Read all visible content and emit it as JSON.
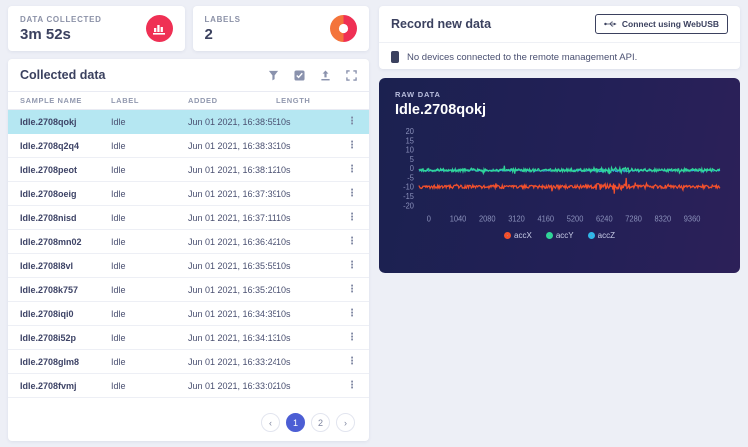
{
  "stats": [
    {
      "label": "Data collected",
      "value": "3m 52s",
      "icon": "bar-chart-icon"
    },
    {
      "label": "Labels",
      "value": "2",
      "icon": "donut-chart-icon"
    }
  ],
  "collected": {
    "title": "Collected data",
    "toolbar_icons": [
      "filter-icon",
      "select-all-icon",
      "upload-icon",
      "expand-icon"
    ],
    "columns": [
      "Sample name",
      "Label",
      "Added",
      "Length"
    ],
    "rows": [
      {
        "sample": "Idle.2708qokj",
        "label": "Idle",
        "added": "Jun 01 2021, 16:38:55",
        "length": "10s",
        "selected": true
      },
      {
        "sample": "Idle.2708q2q4",
        "label": "Idle",
        "added": "Jun 01 2021, 16:38:33",
        "length": "10s",
        "selected": false
      },
      {
        "sample": "Idle.2708peot",
        "label": "Idle",
        "added": "Jun 01 2021, 16:38:12",
        "length": "10s",
        "selected": false
      },
      {
        "sample": "Idle.2708oeig",
        "label": "Idle",
        "added": "Jun 01 2021, 16:37:39",
        "length": "10s",
        "selected": false
      },
      {
        "sample": "Idle.2708nisd",
        "label": "Idle",
        "added": "Jun 01 2021, 16:37:11",
        "length": "10s",
        "selected": false
      },
      {
        "sample": "Idle.2708mn02",
        "label": "Idle",
        "added": "Jun 01 2021, 16:36:42",
        "length": "10s",
        "selected": false
      },
      {
        "sample": "Idle.2708l8vl",
        "label": "Idle",
        "added": "Jun 01 2021, 16:35:55",
        "length": "10s",
        "selected": false
      },
      {
        "sample": "Idle.2708k757",
        "label": "Idle",
        "added": "Jun 01 2021, 16:35:20",
        "length": "10s",
        "selected": false
      },
      {
        "sample": "Idle.2708iqi0",
        "label": "Idle",
        "added": "Jun 01 2021, 16:34:35",
        "length": "10s",
        "selected": false
      },
      {
        "sample": "Idle.2708i52p",
        "label": "Idle",
        "added": "Jun 01 2021, 16:34:13",
        "length": "10s",
        "selected": false
      },
      {
        "sample": "Idle.2708glm8",
        "label": "Idle",
        "added": "Jun 01 2021, 16:33:24",
        "length": "10s",
        "selected": false
      },
      {
        "sample": "Idle.2708fvmj",
        "label": "Idle",
        "added": "Jun 01 2021, 16:33:02",
        "length": "10s",
        "selected": false
      }
    ],
    "row_menu_icon": "kebab-menu-icon",
    "pagination": {
      "prev": "‹",
      "next": "›",
      "pages": [
        "1",
        "2"
      ],
      "active": "1"
    }
  },
  "record": {
    "title": "Record new data",
    "connect_button": "Connect using WebUSB",
    "connect_icon": "usb-icon",
    "no_devices_icon": "device-phone-icon",
    "no_devices_message": "No devices connected to the remote management API."
  },
  "raw": {
    "label": "Raw data",
    "title": "Idle.2708qokj"
  },
  "chart_data": {
    "type": "line",
    "title": "Idle.2708qokj",
    "xlabel": "",
    "ylabel": "",
    "x_range": [
      0,
      10000
    ],
    "y_range": [
      -22,
      22
    ],
    "x_ticks": [
      0,
      1040,
      2080,
      3120,
      4160,
      5200,
      6240,
      7280,
      8320,
      9360
    ],
    "y_ticks": [
      20,
      15,
      10,
      5,
      0,
      -5,
      -10,
      -15,
      -20
    ],
    "grid": false,
    "legend_position": "bottom",
    "series": [
      {
        "name": "accX",
        "color": "#f4502c",
        "baseline": -9.8,
        "noise": 0.9,
        "seed": 11
      },
      {
        "name": "accY",
        "color": "#2fd598",
        "baseline": -0.9,
        "noise": 0.8,
        "seed": 22
      },
      {
        "name": "accZ",
        "color": "#30b7e8",
        "baseline": -1.1,
        "noise": 0.4,
        "seed": 33
      }
    ]
  },
  "colors": {
    "accent_crimson": "#ef3054",
    "accent_orange": "#f4743b",
    "selected_row": "#b5e7f2",
    "active_page": "#4c5ed4",
    "panel_navy": "#1b2150",
    "text_navy": "#3b415f"
  }
}
